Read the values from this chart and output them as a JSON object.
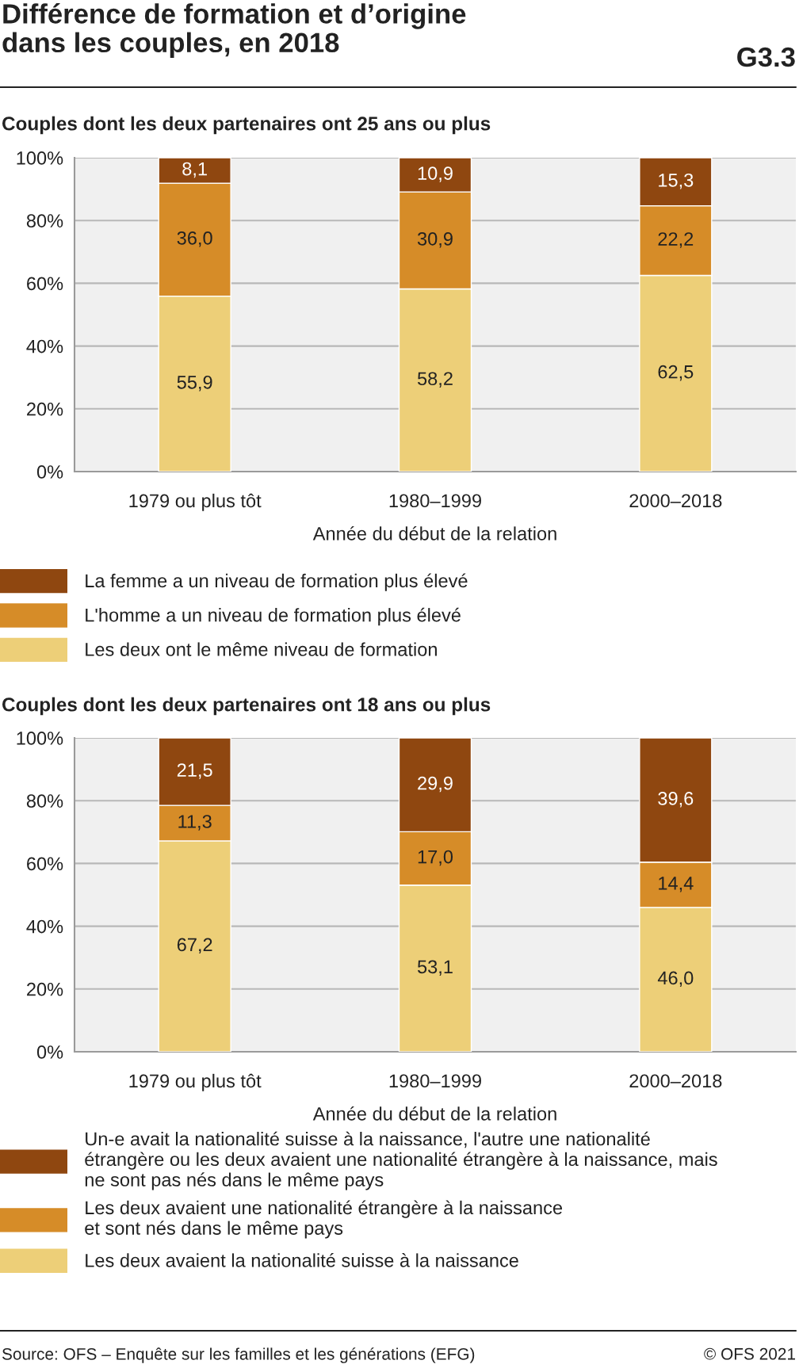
{
  "chart_data": [
    {
      "type": "bar",
      "stacked": true,
      "title": "Différence de formation et d’origine\ndans les couples, en 2018",
      "subtitle": "Couples dont les deux partenaires ont 25 ans ou plus",
      "xlabel": "Année du début de la relation",
      "annotations": [
        "G3.3"
      ],
      "categories": [
        "1979 ou plus tôt",
        "1980–1999",
        "2000–2018"
      ],
      "series": [
        {
          "name": "Les deux ont le même niveau de formation",
          "color": "#edcf78",
          "values": [
            55.9,
            58.2,
            62.5
          ],
          "value_labels": [
            "55,9",
            "58,2",
            "62,5"
          ]
        },
        {
          "name": "L'homme a un niveau de formation plus élevé",
          "color": "#d68c28",
          "values": [
            36.0,
            30.9,
            22.2
          ],
          "value_labels": [
            "36,0",
            "30,9",
            "22,2"
          ]
        },
        {
          "name": "La femme a un niveau de formation plus élevé",
          "color": "#8f4710",
          "values": [
            8.1,
            10.9,
            15.3
          ],
          "value_labels": [
            "8,1",
            "10,9",
            "15,3"
          ]
        }
      ],
      "ylim": [
        0,
        100
      ],
      "yticks": [
        {
          "value": 0,
          "label": "0%"
        },
        {
          "value": 20,
          "label": "20%"
        },
        {
          "value": 40,
          "label": "40%"
        },
        {
          "value": 60,
          "label": "60%"
        },
        {
          "value": 80,
          "label": "80%"
        },
        {
          "value": 100,
          "label": "100%"
        }
      ],
      "grid": "y",
      "legend": "bottom"
    },
    {
      "type": "bar",
      "stacked": true,
      "subtitle": "Couples dont les deux partenaires ont 18 ans ou plus",
      "xlabel": "Année du début de la relation",
      "annotations": [
        "Source: OFS – Enquête sur les familles et les générations (EFG)",
        "© OFS 2021"
      ],
      "categories": [
        "1979 ou plus tôt",
        "1980–1999",
        "2000–2018"
      ],
      "series": [
        {
          "name": "Les deux avaient la nationalité suisse à la naissance",
          "color": "#edcf78",
          "values": [
            67.2,
            53.1,
            46.0
          ],
          "value_labels": [
            "67,2",
            "53,1",
            "46,0"
          ]
        },
        {
          "name": "Les deux avaient une nationalité étrangère à la naissance\net sont nés dans le même pays",
          "color": "#d68c28",
          "values": [
            11.3,
            17.0,
            14.4
          ],
          "value_labels": [
            "11,3",
            "17,0",
            "14,4"
          ]
        },
        {
          "name": "Un-e avait la nationalité suisse à la naissance, l'autre une nationalité\nétrangère ou les deux avaient une nationalité étrangère à la naissance, mais\nne sont pas nés dans le même pays",
          "color": "#8f4710",
          "values": [
            21.5,
            29.9,
            39.6
          ],
          "value_labels": [
            "21,5",
            "29,9",
            "39,6"
          ]
        }
      ],
      "ylim": [
        0,
        100
      ],
      "yticks": [
        {
          "value": 0,
          "label": "0%"
        },
        {
          "value": 20,
          "label": "20%"
        },
        {
          "value": 40,
          "label": "40%"
        },
        {
          "value": 60,
          "label": "60%"
        },
        {
          "value": 80,
          "label": "80%"
        },
        {
          "value": 100,
          "label": "100%"
        }
      ],
      "grid": "y",
      "legend": "bottom"
    }
  ]
}
